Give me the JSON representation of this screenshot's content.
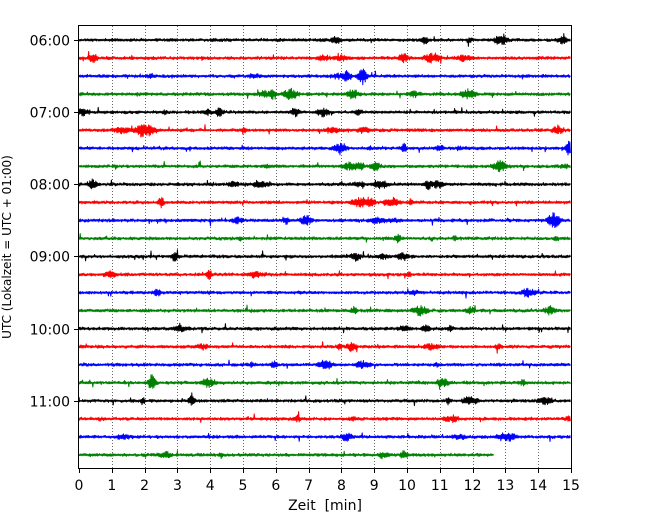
{
  "chart_data": {
    "type": "line",
    "title": "",
    "xlabel": "Zeit  [min]",
    "ylabel": "UTC (Lokalzeit = UTC + 01:00)",
    "xlim": [
      0,
      15
    ],
    "x_ticks": [
      0,
      1,
      2,
      3,
      4,
      5,
      6,
      7,
      8,
      9,
      10,
      11,
      12,
      13,
      14,
      15
    ],
    "x_tick_labels": [
      "0",
      "1",
      "2",
      "3",
      "4",
      "5",
      "6",
      "7",
      "8",
      "9",
      "10",
      "11",
      "12",
      "13",
      "14",
      "15"
    ],
    "y_ticks": [
      "06:00",
      "07:00",
      "08:00",
      "09:00",
      "10:00",
      "11:00"
    ],
    "grid": "vertical dotted at each minute",
    "legend": "none",
    "trace_interval_min": 15,
    "color_cycle": [
      "#000000",
      "#ff0000",
      "#0000ff",
      "#008000"
    ],
    "series": [
      {
        "start": "06:00",
        "end_min": 15,
        "color": "#000000"
      },
      {
        "start": "06:15",
        "end_min": 15,
        "color": "#ff0000"
      },
      {
        "start": "06:30",
        "end_min": 15,
        "color": "#0000ff"
      },
      {
        "start": "06:45",
        "end_min": 15,
        "color": "#008000"
      },
      {
        "start": "07:00",
        "end_min": 15,
        "color": "#000000"
      },
      {
        "start": "07:15",
        "end_min": 15,
        "color": "#ff0000"
      },
      {
        "start": "07:30",
        "end_min": 15,
        "color": "#0000ff"
      },
      {
        "start": "07:45",
        "end_min": 15,
        "color": "#008000"
      },
      {
        "start": "08:00",
        "end_min": 15,
        "color": "#000000"
      },
      {
        "start": "08:15",
        "end_min": 15,
        "color": "#ff0000"
      },
      {
        "start": "08:30",
        "end_min": 15,
        "color": "#0000ff"
      },
      {
        "start": "08:45",
        "end_min": 15,
        "color": "#008000"
      },
      {
        "start": "09:00",
        "end_min": 15,
        "color": "#000000"
      },
      {
        "start": "09:15",
        "end_min": 15,
        "color": "#ff0000"
      },
      {
        "start": "09:30",
        "end_min": 15,
        "color": "#0000ff"
      },
      {
        "start": "09:45",
        "end_min": 15,
        "color": "#008000"
      },
      {
        "start": "10:00",
        "end_min": 15,
        "color": "#000000"
      },
      {
        "start": "10:15",
        "end_min": 15,
        "color": "#ff0000"
      },
      {
        "start": "10:30",
        "end_min": 15,
        "color": "#0000ff"
      },
      {
        "start": "10:45",
        "end_min": 15,
        "color": "#008000"
      },
      {
        "start": "11:00",
        "end_min": 15,
        "color": "#000000"
      },
      {
        "start": "11:15",
        "end_min": 15,
        "color": "#ff0000"
      },
      {
        "start": "11:30",
        "end_min": 15,
        "color": "#0000ff"
      },
      {
        "start": "11:45",
        "end_min": 12.65,
        "color": "#008000"
      }
    ]
  }
}
